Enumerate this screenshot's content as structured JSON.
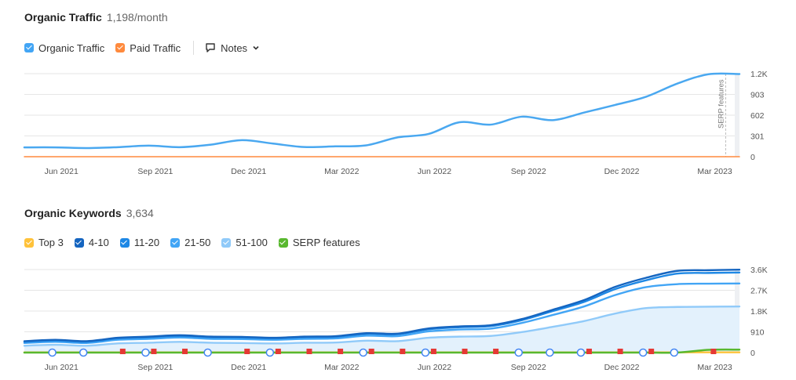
{
  "traffic": {
    "title": "Organic Traffic",
    "value": "1,198/month",
    "legend": [
      {
        "label": "Organic Traffic",
        "color": "#42a5f5",
        "icon": "checkbox-checked"
      },
      {
        "label": "Paid Traffic",
        "color": "#ff8a3d",
        "icon": "checkbox-checked"
      }
    ],
    "notes_label": "Notes"
  },
  "keywords": {
    "title": "Organic Keywords",
    "value": "3,634",
    "legend": [
      {
        "label": "Top 3",
        "color": "#ffc23a"
      },
      {
        "label": "4-10",
        "color": "#1565c0"
      },
      {
        "label": "11-20",
        "color": "#1e88e5"
      },
      {
        "label": "21-50",
        "color": "#42a5f5"
      },
      {
        "label": "51-100",
        "color": "#90caf9"
      },
      {
        "label": "SERP features",
        "color": "#59b82f"
      }
    ]
  },
  "chart_data": [
    {
      "type": "line",
      "x_ticks": [
        "Jun 2021",
        "Sep 2021",
        "Dec 2021",
        "Mar 2022",
        "Jun 2022",
        "Sep 2022",
        "Dec 2022",
        "Mar 2023"
      ],
      "y_ticks": [
        "0",
        "301",
        "602",
        "903",
        "1.2K"
      ],
      "ylim": [
        0,
        1204
      ],
      "x": [
        "May 2021",
        "Jun 2021",
        "Jul 2021",
        "Aug 2021",
        "Sep 2021",
        "Oct 2021",
        "Nov 2021",
        "Dec 2021",
        "Jan 2022",
        "Feb 2022",
        "Mar 2022",
        "Apr 2022",
        "May 2022",
        "Jun 2022",
        "Jul 2022",
        "Aug 2022",
        "Sep 2022",
        "Oct 2022",
        "Nov 2022",
        "Dec 2022",
        "Jan 2023",
        "Feb 2023",
        "Mar 2023",
        "Apr 2023"
      ],
      "series": [
        {
          "name": "Organic Traffic",
          "color": "#4aa8f0",
          "values": [
            135,
            135,
            125,
            138,
            160,
            138,
            175,
            240,
            190,
            140,
            150,
            165,
            280,
            330,
            500,
            465,
            580,
            530,
            640,
            750,
            870,
            1060,
            1195,
            1198
          ]
        },
        {
          "name": "Paid Traffic",
          "color": "#ff8a3d",
          "values": [
            0,
            0,
            0,
            0,
            0,
            0,
            0,
            0,
            0,
            0,
            0,
            0,
            0,
            0,
            0,
            0,
            0,
            0,
            0,
            0,
            0,
            0,
            0,
            0
          ]
        }
      ],
      "annotation": "SERP features"
    },
    {
      "type": "area",
      "x_ticks": [
        "Jun 2021",
        "Sep 2021",
        "Dec 2021",
        "Mar 2022",
        "Jun 2022",
        "Sep 2022",
        "Dec 2022",
        "Mar 2023"
      ],
      "y_ticks": [
        "0",
        "910",
        "1.8K",
        "2.7K",
        "3.6K"
      ],
      "ylim": [
        0,
        3640
      ],
      "x": [
        "May 2021",
        "Jun 2021",
        "Jul 2021",
        "Aug 2021",
        "Sep 2021",
        "Oct 2021",
        "Nov 2021",
        "Dec 2021",
        "Jan 2022",
        "Feb 2022",
        "Mar 2022",
        "Apr 2022",
        "May 2022",
        "Jun 2022",
        "Jul 2022",
        "Aug 2022",
        "Sep 2022",
        "Oct 2022",
        "Nov 2022",
        "Dec 2022",
        "Jan 2023",
        "Feb 2023",
        "Mar 2023",
        "Apr 2023"
      ],
      "series": [
        {
          "name": "Top 3",
          "color": "#ffc23a",
          "values": [
            10,
            10,
            10,
            10,
            10,
            10,
            10,
            10,
            10,
            10,
            10,
            10,
            10,
            10,
            10,
            10,
            10,
            10,
            10,
            10,
            10,
            10,
            10,
            10
          ]
        },
        {
          "name": "4-10",
          "color": "#1565c0",
          "values": [
            500,
            560,
            500,
            650,
            700,
            760,
            700,
            690,
            650,
            700,
            720,
            850,
            830,
            1060,
            1150,
            1200,
            1470,
            1880,
            2300,
            2880,
            3280,
            3580,
            3610,
            3634
          ]
        },
        {
          "name": "11-20",
          "color": "#1e88e5",
          "values": [
            470,
            530,
            470,
            620,
            670,
            730,
            670,
            660,
            620,
            670,
            690,
            820,
            800,
            1020,
            1110,
            1160,
            1420,
            1820,
            2220,
            2780,
            3170,
            3460,
            3490,
            3510
          ]
        },
        {
          "name": "21-50",
          "color": "#42a5f5",
          "values": [
            420,
            470,
            420,
            560,
            600,
            660,
            600,
            590,
            560,
            600,
            620,
            740,
            720,
            930,
            1010,
            1050,
            1300,
            1650,
            2020,
            2520,
            2870,
            3000,
            3020,
            3030
          ]
        },
        {
          "name": "51-100",
          "color": "#90caf9",
          "values": [
            300,
            340,
            300,
            400,
            430,
            470,
            430,
            420,
            400,
            430,
            440,
            520,
            500,
            650,
            700,
            730,
            900,
            1130,
            1380,
            1710,
            1950,
            2000,
            2010,
            2020
          ]
        },
        {
          "name": "SERP features",
          "color": "#59b82f",
          "values": [
            0,
            0,
            0,
            0,
            0,
            0,
            0,
            0,
            0,
            0,
            0,
            0,
            0,
            0,
            0,
            0,
            0,
            0,
            0,
            0,
            0,
            0,
            120,
            130
          ]
        }
      ],
      "markers": [
        {
          "type": "google-update",
          "x": [
            "Jun 2021",
            "Jul 2021",
            "Sep 2021",
            "Nov 2021",
            "Jan 2022",
            "Apr 2022",
            "Jun 2022",
            "Sep 2022",
            "Oct 2022",
            "Nov 2022",
            "Jan 2023",
            "Feb 2023"
          ]
        },
        {
          "type": "red-flag",
          "x": [
            "Aug 2021",
            "Sep 2021",
            "Oct 2021",
            "Dec 2021",
            "Jan 2022",
            "Feb 2022",
            "Mar 2022",
            "Apr 2022",
            "May 2022",
            "Jun 2022",
            "Jul 2022",
            "Aug 2022",
            "Nov 2022",
            "Dec 2022",
            "Jan 2023",
            "Mar 2023"
          ]
        }
      ]
    }
  ]
}
